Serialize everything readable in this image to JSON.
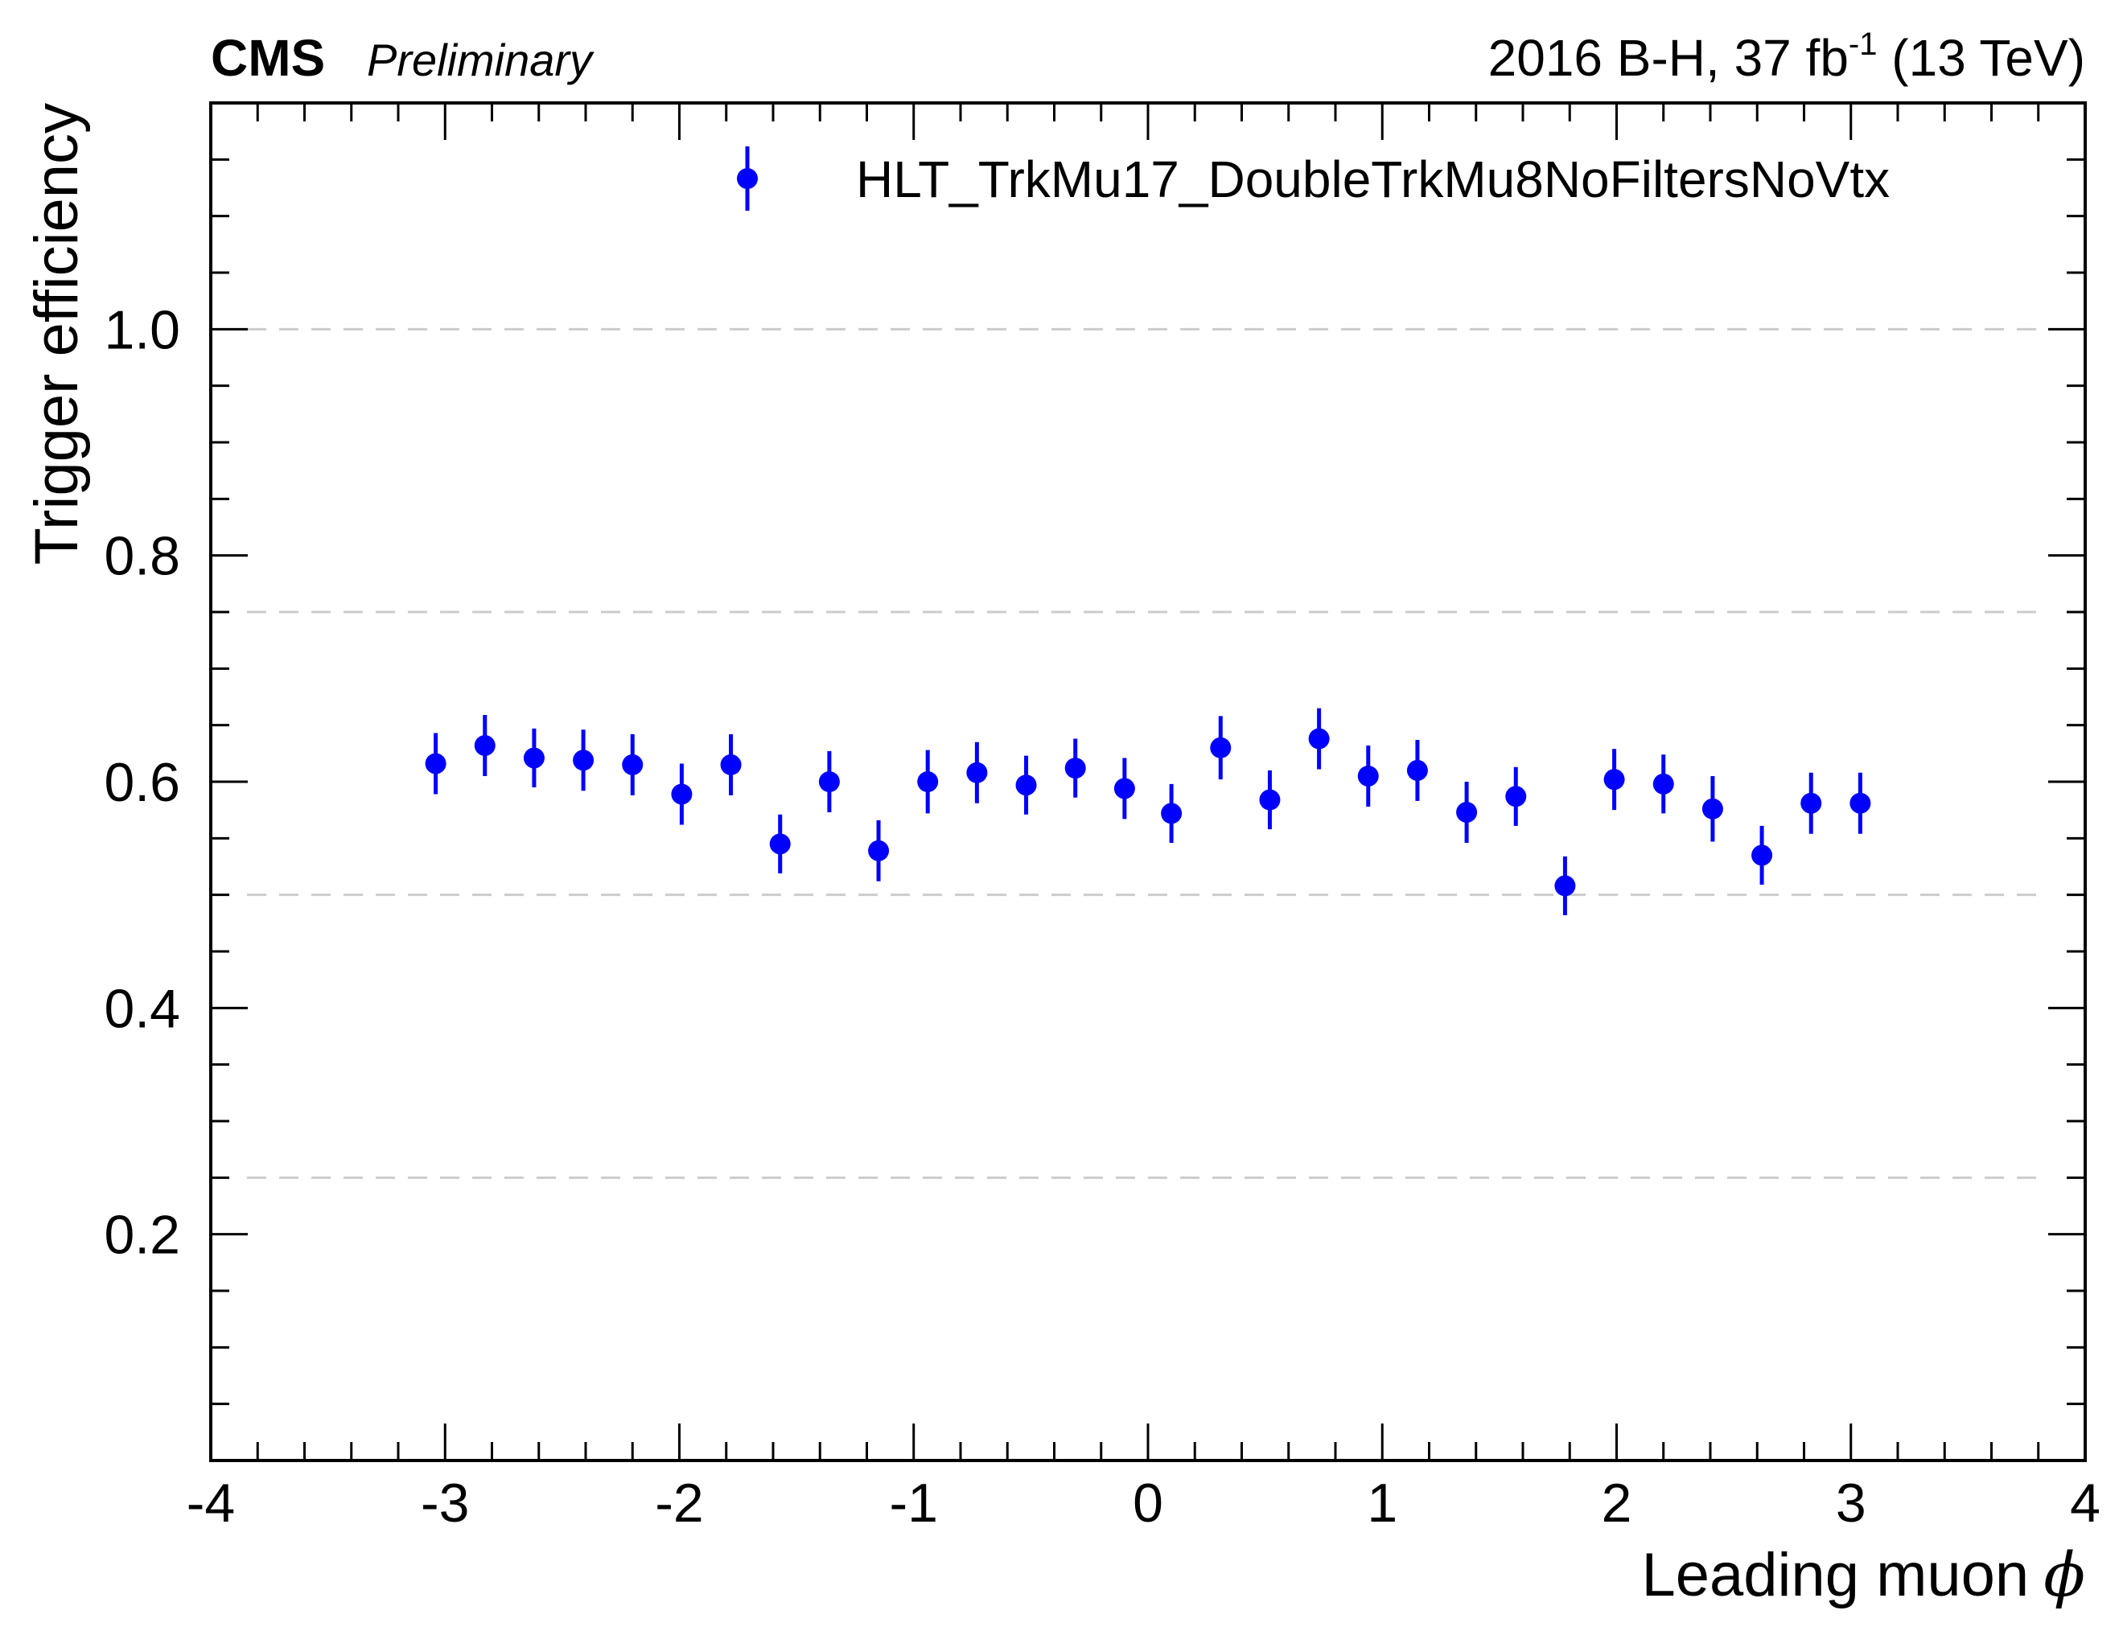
{
  "header": {
    "experiment": "CMS",
    "status": "Preliminary",
    "lumi_prefix": "2016 B-H, 37 fb",
    "lumi_exponent": "-1",
    "lumi_suffix": " (13 TeV)"
  },
  "chart_data": {
    "type": "scatter",
    "title": "",
    "xlabel": "Leading muon",
    "xlabel_symbol": "ϕ",
    "ylabel": "Trigger efficiency",
    "xlim": [
      -4,
      4
    ],
    "ylim": [
      0,
      1.2
    ],
    "x_ticks": [
      -4,
      -3,
      -2,
      -1,
      0,
      1,
      2,
      3,
      4
    ],
    "x_tick_labels": [
      "-4",
      "-3",
      "-2",
      "-1",
      "0",
      "1",
      "2",
      "3",
      "4"
    ],
    "y_ticks": [
      0.2,
      0.4,
      0.6,
      0.8,
      1.0
    ],
    "y_tick_labels": [
      "0.2",
      "0.4",
      "0.6",
      "0.8",
      "1.0"
    ],
    "grid_y": [
      0.25,
      0.5,
      0.75,
      1.0
    ],
    "legend_placement": "top-right",
    "series": [
      {
        "name": "HLT_TrkMu17_DoubleTrkMu8NoFiltersNoVtx",
        "color": "#0000ff",
        "x": [
          -3.04,
          -2.83,
          -2.62,
          -2.41,
          -2.2,
          -1.99,
          -1.78,
          -1.57,
          -1.36,
          -1.15,
          -0.94,
          -0.73,
          -0.52,
          -0.31,
          -0.1,
          0.1,
          0.31,
          0.52,
          0.73,
          0.94,
          1.15,
          1.36,
          1.57,
          1.78,
          1.99,
          2.2,
          2.41,
          2.62,
          2.83,
          3.04
        ],
        "y": [
          0.616,
          0.632,
          0.621,
          0.619,
          0.615,
          0.589,
          0.615,
          0.545,
          0.6,
          0.539,
          0.6,
          0.608,
          0.597,
          0.612,
          0.594,
          0.572,
          0.63,
          0.584,
          0.638,
          0.605,
          0.61,
          0.573,
          0.587,
          0.508,
          0.602,
          0.598,
          0.576,
          0.535,
          0.581,
          0.581
        ],
        "yerr": [
          0.027,
          0.027,
          0.026,
          0.027,
          0.027,
          0.027,
          0.027,
          0.026,
          0.027,
          0.027,
          0.028,
          0.027,
          0.026,
          0.026,
          0.027,
          0.026,
          0.028,
          0.026,
          0.027,
          0.027,
          0.027,
          0.027,
          0.026,
          0.026,
          0.027,
          0.026,
          0.029,
          0.026,
          0.027,
          0.027
        ]
      }
    ]
  }
}
